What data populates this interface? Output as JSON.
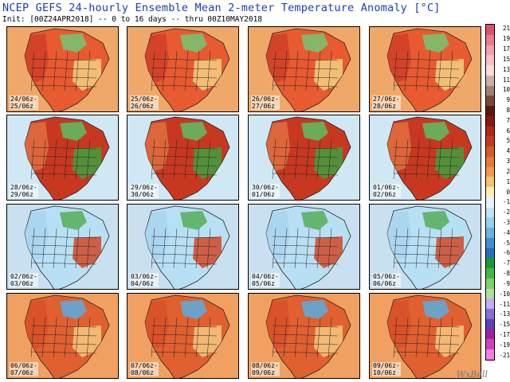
{
  "title": "NCEP GEFS 24-hourly Ensemble Mean 2-meter Temperature Anomaly [°C]",
  "subtitle": "Init: [00Z24APR2018] -- 0 to 16 days -- thru 00Z10MAY2018",
  "logo": "WxBell",
  "panels": [
    {
      "label": "24/06z-\n25/06z",
      "pattern": "warmwest"
    },
    {
      "label": "25/06z-\n26/06z",
      "pattern": "warmwest"
    },
    {
      "label": "26/06z-\n27/06z",
      "pattern": "warmwest"
    },
    {
      "label": "27/06z-\n28/06z",
      "pattern": "warmwest"
    },
    {
      "label": "28/06z-\n29/06z",
      "pattern": "warmcentral"
    },
    {
      "label": "29/06z-\n30/06z",
      "pattern": "warmcentral"
    },
    {
      "label": "30/06z-\n01/06z",
      "pattern": "warmcentral"
    },
    {
      "label": "01/06z-\n02/06z",
      "pattern": "warmcentral"
    },
    {
      "label": "02/06z-\n03/06z",
      "pattern": "warmeast"
    },
    {
      "label": "03/06z-\n04/06z",
      "pattern": "warmeast"
    },
    {
      "label": "04/06z-\n05/06z",
      "pattern": "warmeast"
    },
    {
      "label": "05/06z-\n06/06z",
      "pattern": "warmeast"
    },
    {
      "label": "06/06z-\n07/06z",
      "pattern": "warmall"
    },
    {
      "label": "07/06z-\n08/06z",
      "pattern": "warmall"
    },
    {
      "label": "08/06z-\n09/06z",
      "pattern": "warmall"
    },
    {
      "label": "09/06z-\n10/06z",
      "pattern": "warmall"
    }
  ],
  "colorbar": {
    "labels": [
      "21",
      "19",
      "17",
      "15",
      "13",
      "11",
      "10",
      "9",
      "8",
      "7",
      "6",
      "5",
      "4",
      "3",
      "2",
      "1",
      "0",
      "-1",
      "-2",
      "-3",
      "-4",
      "-5",
      "-6",
      "-7",
      "-8",
      "-9",
      "-10",
      "-11",
      "-13",
      "-15",
      "-17",
      "-19",
      "-21"
    ],
    "colors": [
      "#e0506a",
      "#ec7a8a",
      "#f4a0aa",
      "#f8c0c4",
      "#fcdcd8",
      "#c8b0a8",
      "#a08070",
      "#784838",
      "#5a1810",
      "#8a1a10",
      "#b02818",
      "#c83820",
      "#d85828",
      "#e87838",
      "#f49850",
      "#f8c070",
      "#fff0b0",
      "#e8f4fc",
      "#c0e4f4",
      "#98d0ec",
      "#6cb4e0",
      "#4090d0",
      "#2a6cb8",
      "#1a9a30",
      "#40b848",
      "#80d070",
      "#b0e0a0",
      "#c0b0f0",
      "#8870d8",
      "#6040b8",
      "#a020a0",
      "#d040c0",
      "#f080e0"
    ]
  }
}
